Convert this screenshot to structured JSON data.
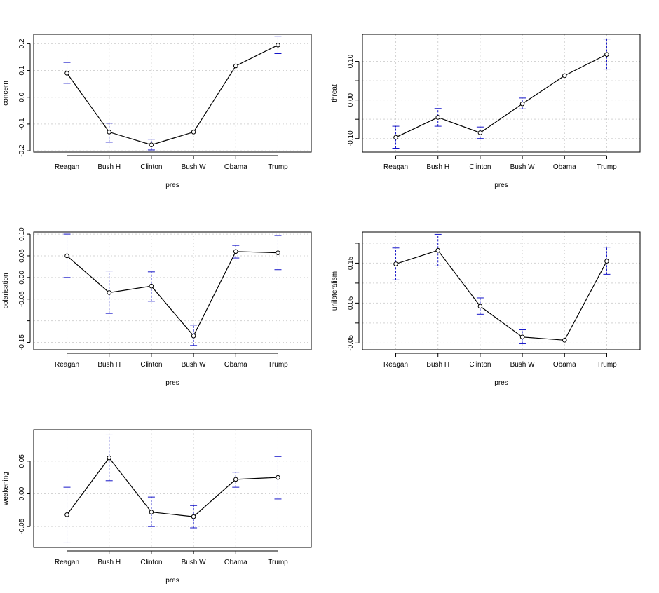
{
  "chart_data": [
    {
      "type": "line",
      "xlabel": "pres",
      "ylabel": "concern",
      "categories": [
        "Reagan",
        "Bush H",
        "Clinton",
        "Bush W",
        "Obama",
        "Trump"
      ],
      "values": [
        0.09,
        -0.13,
        -0.178,
        -0.13,
        0.117,
        0.195
      ],
      "error_low": [
        0.052,
        -0.168,
        -0.197,
        null,
        null,
        0.163
      ],
      "error_high": [
        0.13,
        -0.097,
        -0.157,
        null,
        null,
        0.228
      ],
      "ylim": [
        -0.205,
        0.235
      ],
      "yticks": [
        -0.2,
        -0.1,
        0.0,
        0.1,
        0.2
      ],
      "ytick_labels": [
        "-0.2",
        "-0.1",
        "0.0",
        "0.1",
        "0.2"
      ],
      "grid": true
    },
    {
      "type": "line",
      "xlabel": "pres",
      "ylabel": "threat",
      "categories": [
        "Reagan",
        "Bush H",
        "Clinton",
        "Bush W",
        "Obama",
        "Trump"
      ],
      "values": [
        -0.097,
        -0.045,
        -0.085,
        -0.01,
        0.063,
        0.118
      ],
      "error_low": [
        -0.125,
        -0.068,
        -0.1,
        -0.023,
        null,
        0.08
      ],
      "error_high": [
        -0.068,
        -0.022,
        -0.07,
        0.005,
        null,
        0.158
      ],
      "ylim": [
        -0.135,
        0.17
      ],
      "yticks": [
        -0.1,
        -0.05,
        0.0,
        0.05,
        0.1
      ],
      "ytick_labels": [
        "-0.10",
        "",
        "0.00",
        "",
        "0.10"
      ],
      "grid": true
    },
    {
      "type": "line",
      "xlabel": "pres",
      "ylabel": "polarisation",
      "categories": [
        "Reagan",
        "Bush H",
        "Clinton",
        "Bush W",
        "Obama",
        "Trump"
      ],
      "values": [
        0.05,
        -0.035,
        -0.02,
        -0.135,
        0.06,
        0.057
      ],
      "error_low": [
        0.0,
        -0.083,
        -0.055,
        -0.157,
        0.045,
        0.018
      ],
      "error_high": [
        0.1,
        0.015,
        0.013,
        -0.11,
        0.074,
        0.097
      ],
      "ylim": [
        -0.167,
        0.105
      ],
      "yticks": [
        -0.15,
        -0.1,
        -0.05,
        0.0,
        0.05,
        0.1
      ],
      "ytick_labels": [
        "-0.15",
        "",
        "-0.05",
        "0.00",
        "0.05",
        "0.10"
      ],
      "grid": true
    },
    {
      "type": "line",
      "xlabel": "pres",
      "ylabel": "unilateralism",
      "categories": [
        "Reagan",
        "Bush H",
        "Clinton",
        "Bush W",
        "Obama",
        "Trump"
      ],
      "values": [
        0.148,
        0.182,
        0.042,
        -0.035,
        -0.043,
        0.155
      ],
      "error_low": [
        0.108,
        0.143,
        0.022,
        -0.052,
        null,
        0.122
      ],
      "error_high": [
        0.188,
        0.222,
        0.063,
        -0.017,
        null,
        0.19
      ],
      "ylim": [
        -0.067,
        0.228
      ],
      "yticks": [
        -0.05,
        0.0,
        0.05,
        0.1,
        0.15,
        0.2
      ],
      "ytick_labels": [
        "-0.05",
        "",
        "0.05",
        "",
        "0.15",
        ""
      ],
      "grid": true
    },
    {
      "type": "line",
      "xlabel": "pres",
      "ylabel": "weakening",
      "categories": [
        "Reagan",
        "Bush H",
        "Clinton",
        "Bush W",
        "Obama",
        "Trump"
      ],
      "values": [
        -0.032,
        0.055,
        -0.028,
        -0.035,
        0.022,
        0.025
      ],
      "error_low": [
        -0.075,
        0.02,
        -0.05,
        -0.052,
        0.01,
        -0.008
      ],
      "error_high": [
        0.01,
        0.09,
        -0.005,
        -0.018,
        0.033,
        0.057
      ],
      "ylim": [
        -0.082,
        0.098
      ],
      "yticks": [
        -0.05,
        0.0,
        0.05
      ],
      "ytick_labels": [
        "-0.05",
        "0.00",
        "0.05"
      ],
      "grid": true
    }
  ]
}
